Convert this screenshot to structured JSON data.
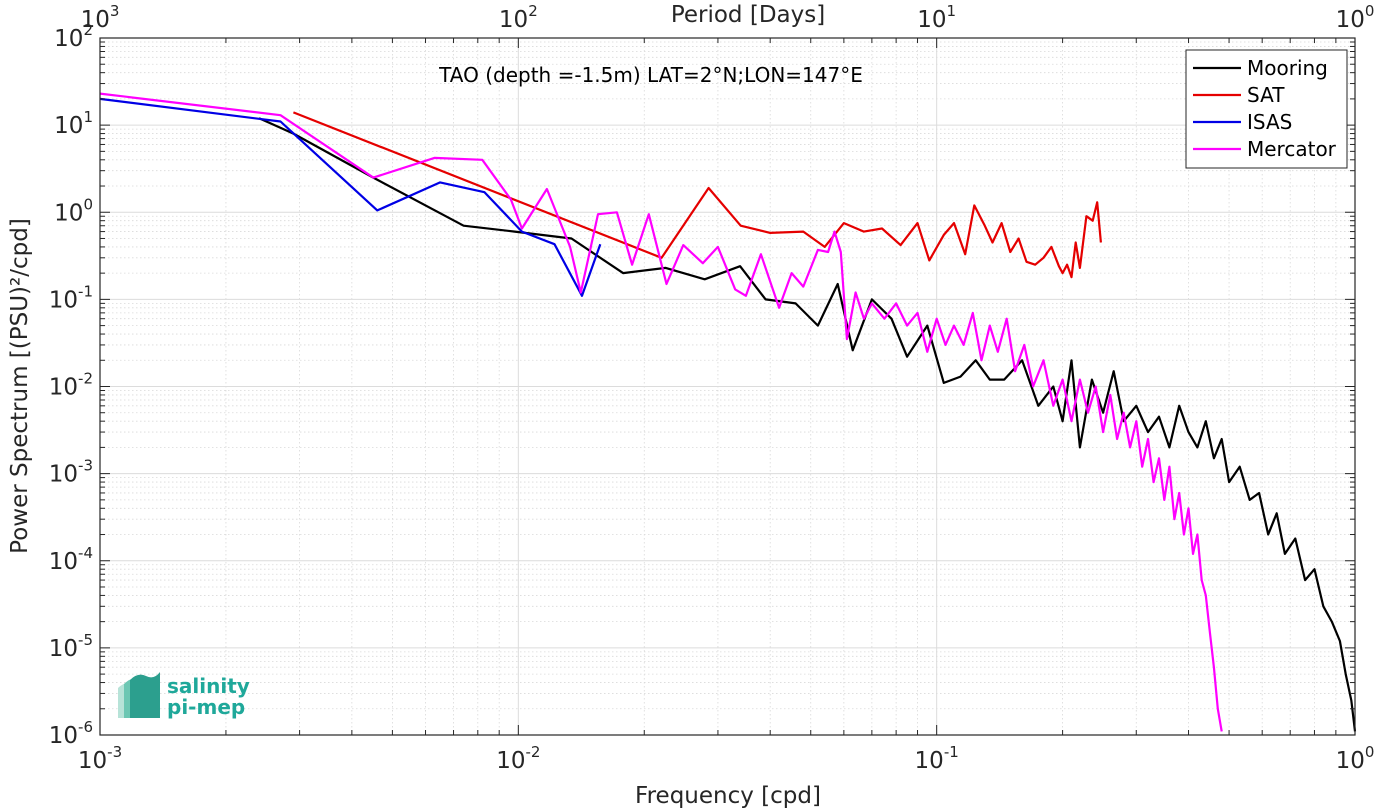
{
  "chart_data": {
    "type": "line",
    "title": "TAO (depth =-1.5m) LAT=2°N;LON=147°E",
    "xlabel": "Frequency [cpd]",
    "x2label": "Period [Days]",
    "ylabel": "Power Spectrum [(PSU)²/cpd]",
    "xscale": "log",
    "yscale": "log",
    "xlim": [
      0.001,
      1
    ],
    "ylim": [
      1e-06,
      100
    ],
    "grid": true,
    "legend_position": "top-right",
    "x_ticks": [
      {
        "value": 0.001,
        "base": "10",
        "exp": "-3"
      },
      {
        "value": 0.01,
        "base": "10",
        "exp": "-2"
      },
      {
        "value": 0.1,
        "base": "10",
        "exp": "-1"
      },
      {
        "value": 1,
        "base": "10",
        "exp": "0"
      }
    ],
    "x2_ticks": [
      {
        "value": 0.001,
        "base": "10",
        "exp": "3"
      },
      {
        "value": 0.01,
        "base": "10",
        "exp": "2"
      },
      {
        "value": 0.1,
        "base": "10",
        "exp": "1"
      },
      {
        "value": 1,
        "base": "10",
        "exp": "0"
      }
    ],
    "y_ticks": [
      {
        "value": 100,
        "base": "10",
        "exp": "2"
      },
      {
        "value": 10,
        "base": "10",
        "exp": "1"
      },
      {
        "value": 1,
        "base": "10",
        "exp": "0"
      },
      {
        "value": 0.1,
        "base": "10",
        "exp": "-1"
      },
      {
        "value": 0.01,
        "base": "10",
        "exp": "-2"
      },
      {
        "value": 0.001,
        "base": "10",
        "exp": "-3"
      },
      {
        "value": 0.0001,
        "base": "10",
        "exp": "-4"
      },
      {
        "value": 1e-05,
        "base": "10",
        "exp": "-5"
      },
      {
        "value": 1e-06,
        "base": "10",
        "exp": "-6"
      }
    ],
    "series": [
      {
        "name": "Mooring",
        "color": "#000000",
        "points": [
          [
            0.0024,
            12
          ],
          [
            0.0029,
            8
          ],
          [
            0.0045,
            2.5
          ],
          [
            0.0074,
            0.7
          ],
          [
            0.0098,
            0.6
          ],
          [
            0.0134,
            0.5
          ],
          [
            0.0178,
            0.2
          ],
          [
            0.0225,
            0.23
          ],
          [
            0.0279,
            0.17
          ],
          [
            0.0339,
            0.24
          ],
          [
            0.039,
            0.1
          ],
          [
            0.046,
            0.09
          ],
          [
            0.052,
            0.05
          ],
          [
            0.058,
            0.15
          ],
          [
            0.063,
            0.026
          ],
          [
            0.07,
            0.1
          ],
          [
            0.078,
            0.06
          ],
          [
            0.085,
            0.022
          ],
          [
            0.095,
            0.05
          ],
          [
            0.104,
            0.011
          ],
          [
            0.114,
            0.013
          ],
          [
            0.124,
            0.02
          ],
          [
            0.134,
            0.012
          ],
          [
            0.145,
            0.012
          ],
          [
            0.16,
            0.02
          ],
          [
            0.175,
            0.006
          ],
          [
            0.19,
            0.01
          ],
          [
            0.2,
            0.004
          ],
          [
            0.21,
            0.02
          ],
          [
            0.22,
            0.002
          ],
          [
            0.235,
            0.012
          ],
          [
            0.25,
            0.005
          ],
          [
            0.265,
            0.015
          ],
          [
            0.28,
            0.004
          ],
          [
            0.3,
            0.006
          ],
          [
            0.32,
            0.003
          ],
          [
            0.34,
            0.0045
          ],
          [
            0.36,
            0.002
          ],
          [
            0.38,
            0.006
          ],
          [
            0.4,
            0.003
          ],
          [
            0.42,
            0.002
          ],
          [
            0.44,
            0.004
          ],
          [
            0.46,
            0.0015
          ],
          [
            0.48,
            0.0025
          ],
          [
            0.5,
            0.0008
          ],
          [
            0.53,
            0.0012
          ],
          [
            0.56,
            0.0005
          ],
          [
            0.59,
            0.0006
          ],
          [
            0.62,
            0.0002
          ],
          [
            0.65,
            0.00035
          ],
          [
            0.68,
            0.00012
          ],
          [
            0.72,
            0.00018
          ],
          [
            0.76,
            6e-05
          ],
          [
            0.8,
            8e-05
          ],
          [
            0.84,
            3e-05
          ],
          [
            0.88,
            2e-05
          ],
          [
            0.92,
            1.2e-05
          ],
          [
            0.95,
            5e-06
          ],
          [
            0.98,
            2.5e-06
          ],
          [
            1.0,
            1.1e-06
          ]
        ]
      },
      {
        "name": "SAT",
        "color": "#e50000",
        "points": [
          [
            0.0029,
            14
          ],
          [
            0.022,
            0.3
          ],
          [
            0.0285,
            1.9
          ],
          [
            0.034,
            0.7
          ],
          [
            0.04,
            0.58
          ],
          [
            0.048,
            0.6
          ],
          [
            0.054,
            0.4
          ],
          [
            0.06,
            0.75
          ],
          [
            0.067,
            0.6
          ],
          [
            0.074,
            0.65
          ],
          [
            0.082,
            0.42
          ],
          [
            0.09,
            0.75
          ],
          [
            0.096,
            0.28
          ],
          [
            0.104,
            0.55
          ],
          [
            0.11,
            0.75
          ],
          [
            0.117,
            0.33
          ],
          [
            0.123,
            1.2
          ],
          [
            0.13,
            0.72
          ],
          [
            0.136,
            0.45
          ],
          [
            0.143,
            0.75
          ],
          [
            0.15,
            0.35
          ],
          [
            0.157,
            0.5
          ],
          [
            0.164,
            0.27
          ],
          [
            0.172,
            0.25
          ],
          [
            0.18,
            0.3
          ],
          [
            0.188,
            0.4
          ],
          [
            0.196,
            0.24
          ],
          [
            0.2,
            0.2
          ],
          [
            0.205,
            0.25
          ],
          [
            0.21,
            0.18
          ],
          [
            0.215,
            0.45
          ],
          [
            0.22,
            0.23
          ],
          [
            0.228,
            0.9
          ],
          [
            0.236,
            0.8
          ],
          [
            0.242,
            1.3
          ],
          [
            0.247,
            0.45
          ]
        ]
      },
      {
        "name": "ISAS",
        "color": "#0000e5",
        "points": [
          [
            0.001,
            20
          ],
          [
            0.0027,
            11
          ],
          [
            0.0046,
            1.05
          ],
          [
            0.0065,
            2.2
          ],
          [
            0.0083,
            1.7
          ],
          [
            0.0102,
            0.6
          ],
          [
            0.0122,
            0.43
          ],
          [
            0.0142,
            0.11
          ],
          [
            0.0157,
            0.43
          ]
        ]
      },
      {
        "name": "Mercator",
        "color": "#ff00ff",
        "points": [
          [
            0.001,
            23
          ],
          [
            0.0027,
            13
          ],
          [
            0.0045,
            2.5
          ],
          [
            0.0063,
            4.2
          ],
          [
            0.0082,
            4.0
          ],
          [
            0.0096,
            1.4
          ],
          [
            0.0102,
            0.65
          ],
          [
            0.0117,
            1.85
          ],
          [
            0.0133,
            0.4
          ],
          [
            0.0141,
            0.12
          ],
          [
            0.0155,
            0.95
          ],
          [
            0.0172,
            1.0
          ],
          [
            0.0187,
            0.25
          ],
          [
            0.0205,
            0.95
          ],
          [
            0.0226,
            0.15
          ],
          [
            0.0248,
            0.42
          ],
          [
            0.0276,
            0.26
          ],
          [
            0.03,
            0.4
          ],
          [
            0.033,
            0.13
          ],
          [
            0.035,
            0.11
          ],
          [
            0.038,
            0.33
          ],
          [
            0.042,
            0.08
          ],
          [
            0.045,
            0.2
          ],
          [
            0.048,
            0.14
          ],
          [
            0.052,
            0.37
          ],
          [
            0.055,
            0.35
          ],
          [
            0.057,
            0.6
          ],
          [
            0.059,
            0.35
          ],
          [
            0.061,
            0.035
          ],
          [
            0.064,
            0.12
          ],
          [
            0.067,
            0.06
          ],
          [
            0.07,
            0.09
          ],
          [
            0.075,
            0.06
          ],
          [
            0.08,
            0.09
          ],
          [
            0.085,
            0.05
          ],
          [
            0.09,
            0.07
          ],
          [
            0.095,
            0.025
          ],
          [
            0.1,
            0.06
          ],
          [
            0.105,
            0.03
          ],
          [
            0.11,
            0.05
          ],
          [
            0.116,
            0.03
          ],
          [
            0.122,
            0.07
          ],
          [
            0.128,
            0.02
          ],
          [
            0.134,
            0.05
          ],
          [
            0.14,
            0.025
          ],
          [
            0.147,
            0.06
          ],
          [
            0.154,
            0.015
          ],
          [
            0.162,
            0.03
          ],
          [
            0.17,
            0.01
          ],
          [
            0.18,
            0.02
          ],
          [
            0.19,
            0.006
          ],
          [
            0.2,
            0.012
          ],
          [
            0.21,
            0.004
          ],
          [
            0.22,
            0.012
          ],
          [
            0.23,
            0.005
          ],
          [
            0.24,
            0.01
          ],
          [
            0.25,
            0.003
          ],
          [
            0.26,
            0.008
          ],
          [
            0.27,
            0.0025
          ],
          [
            0.28,
            0.005
          ],
          [
            0.29,
            0.002
          ],
          [
            0.3,
            0.004
          ],
          [
            0.31,
            0.0012
          ],
          [
            0.32,
            0.0025
          ],
          [
            0.33,
            0.0008
          ],
          [
            0.34,
            0.0015
          ],
          [
            0.35,
            0.0005
          ],
          [
            0.36,
            0.0012
          ],
          [
            0.37,
            0.0003
          ],
          [
            0.38,
            0.0006
          ],
          [
            0.39,
            0.0002
          ],
          [
            0.4,
            0.0004
          ],
          [
            0.41,
            0.00012
          ],
          [
            0.42,
            0.0002
          ],
          [
            0.43,
            6e-05
          ],
          [
            0.44,
            4e-05
          ],
          [
            0.45,
            1.5e-05
          ],
          [
            0.46,
            6e-06
          ],
          [
            0.47,
            2e-06
          ],
          [
            0.48,
            1.1e-06
          ]
        ]
      }
    ]
  },
  "logo": {
    "line1": "salinity",
    "line2": "pi-mep"
  }
}
